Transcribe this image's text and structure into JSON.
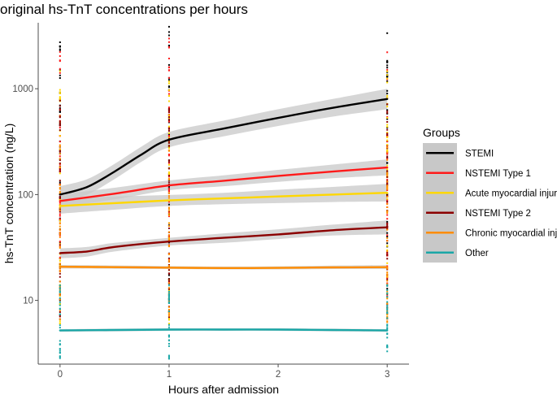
{
  "chart_data": {
    "type": "line",
    "title": "original hs-TnT concentrations per hours",
    "xlabel": "Hours after admission",
    "ylabel": "hs-TnT concentration (ng/L)",
    "y_scale": "log10",
    "xlim": [
      -0.2,
      3.2
    ],
    "ylim": [
      2.5,
      4200
    ],
    "x_ticks": [
      0,
      1,
      2,
      3
    ],
    "x_tick_labels": [
      "0",
      "1",
      "2",
      "3"
    ],
    "y_ticks": [
      10,
      100,
      1000
    ],
    "y_tick_labels": [
      "10",
      "100",
      "1000"
    ],
    "grid": false,
    "legend_title": "Groups",
    "legend_position": "right",
    "series": [
      {
        "name": "STEMI",
        "color": "#000000",
        "x": [
          0,
          0.25,
          0.5,
          0.75,
          1,
          1.5,
          2,
          2.5,
          3
        ],
        "y": [
          100,
          118,
          165,
          240,
          330,
          420,
          530,
          660,
          800
        ],
        "lower": [
          85,
          100,
          140,
          205,
          280,
          355,
          445,
          545,
          640
        ],
        "upper": [
          120,
          140,
          195,
          285,
          390,
          500,
          640,
          800,
          1000
        ]
      },
      {
        "name": "NSTEMI Type 1",
        "color": "#ff1a1a",
        "x": [
          0,
          0.5,
          1,
          1.5,
          2,
          2.5,
          3
        ],
        "y": [
          87,
          102,
          122,
          135,
          150,
          165,
          180
        ],
        "lower": [
          76,
          90,
          110,
          120,
          132,
          143,
          152
        ],
        "upper": [
          100,
          116,
          136,
          152,
          171,
          192,
          215
        ]
      },
      {
        "name": "Acute myocardial injury",
        "color": "#ffd700",
        "x": [
          0,
          0.5,
          1,
          1.5,
          2,
          2.5,
          3
        ],
        "y": [
          78,
          83,
          88,
          92,
          96,
          100,
          104
        ],
        "lower": [
          66,
          72,
          78,
          81,
          83,
          85,
          86
        ],
        "upper": [
          92,
          96,
          99,
          104,
          111,
          118,
          126
        ]
      },
      {
        "name": "NSTEMI Type 2",
        "color": "#8b0000",
        "x": [
          0,
          0.25,
          0.5,
          1,
          1.5,
          2,
          2.5,
          3
        ],
        "y": [
          28,
          29,
          32,
          36,
          39,
          42,
          46,
          49
        ],
        "lower": [
          25,
          26,
          29,
          33,
          35,
          38,
          41,
          42
        ],
        "upper": [
          31,
          32,
          35,
          39,
          43,
          47,
          52,
          57
        ]
      },
      {
        "name": "Chronic myocardial injury",
        "color": "#ff8c00",
        "x": [
          0,
          0.5,
          1,
          1.5,
          2,
          2.5,
          3
        ],
        "y": [
          20.8,
          20.6,
          20.4,
          20.2,
          20.3,
          20.5,
          20.6
        ],
        "lower": [
          20.0,
          19.9,
          19.8,
          19.6,
          19.6,
          19.8,
          19.8
        ],
        "upper": [
          21.6,
          21.4,
          21.1,
          20.9,
          21.0,
          21.3,
          21.5
        ]
      },
      {
        "name": "Other",
        "color": "#1aa7a7",
        "x": [
          0,
          0.5,
          1,
          1.5,
          2,
          2.5,
          3
        ],
        "y": [
          5.2,
          5.25,
          5.3,
          5.3,
          5.3,
          5.25,
          5.2
        ],
        "lower": [
          5.05,
          5.1,
          5.15,
          5.15,
          5.15,
          5.1,
          5.05
        ],
        "upper": [
          5.35,
          5.4,
          5.45,
          5.45,
          5.45,
          5.4,
          5.35
        ]
      }
    ]
  }
}
